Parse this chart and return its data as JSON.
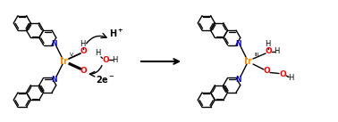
{
  "bg_color": "#ffffff",
  "arrow_color": "#000000",
  "ir_color": "#FF8C00",
  "o_color": "#FF0000",
  "n_color": "#0000CC",
  "c_color": "#000000",
  "bond_lw": 1.0,
  "ring_r": 10,
  "figsize": [
    3.78,
    1.37
  ],
  "dpi": 100,
  "ir_label_left": "Ir",
  "ir_label_right": "Ir",
  "oxidation_left": "V",
  "oxidation_right": "III"
}
